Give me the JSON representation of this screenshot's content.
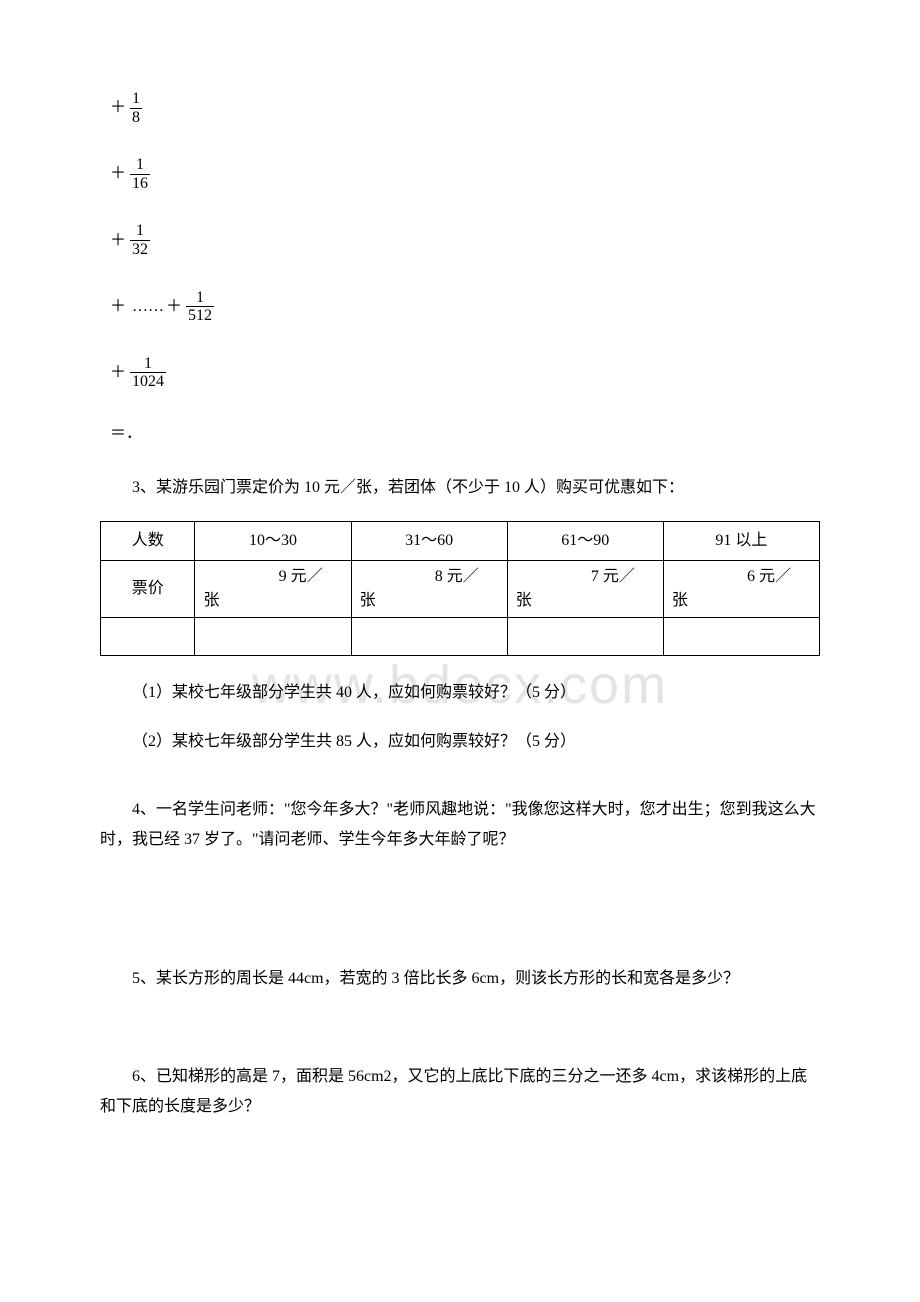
{
  "fractions": [
    {
      "num": "1",
      "den": "8"
    },
    {
      "num": "1",
      "den": "16"
    },
    {
      "num": "1",
      "den": "32"
    }
  ],
  "fraction_tail_1": {
    "num": "1",
    "den": "512"
  },
  "fraction_tail_2": {
    "num": "1",
    "den": "1024"
  },
  "equals": "＝．",
  "q3_intro": "3、某游乐园门票定价为 10 元／张，若团体（不少于 10 人）购买可优惠如下：",
  "table": {
    "headers": [
      "人数",
      "10～30",
      "31～60",
      "61～90",
      "91 以上"
    ],
    "row_label": "票价",
    "prices": [
      "9 元／",
      "8 元／",
      "7 元／",
      "6 元／"
    ],
    "unit": "张"
  },
  "q3_1": "（1）某校七年级部分学生共 40 人，应如何购票较好？（5 分）",
  "q3_2": "（2）某校七年级部分学生共 85 人，应如何购票较好？（5 分）",
  "q4": "4、一名学生问老师：\"您今年多大？\"老师风趣地说：\"我像您这样大时，您才出生；您到我这么大时，我已经 37 岁了。\"请问老师、学生今年多大年龄了呢？",
  "q5": "5、某长方形的周长是 44cm，若宽的 3 倍比长多 6cm，则该长方形的长和宽各是多少？",
  "q6": "6、已知梯形的高是 7，面积是 56cm2，又它的上底比下底的三分之一还多 4cm，求该梯形的上底和下底的长度是多少？",
  "watermark": "www.bdocx.com"
}
